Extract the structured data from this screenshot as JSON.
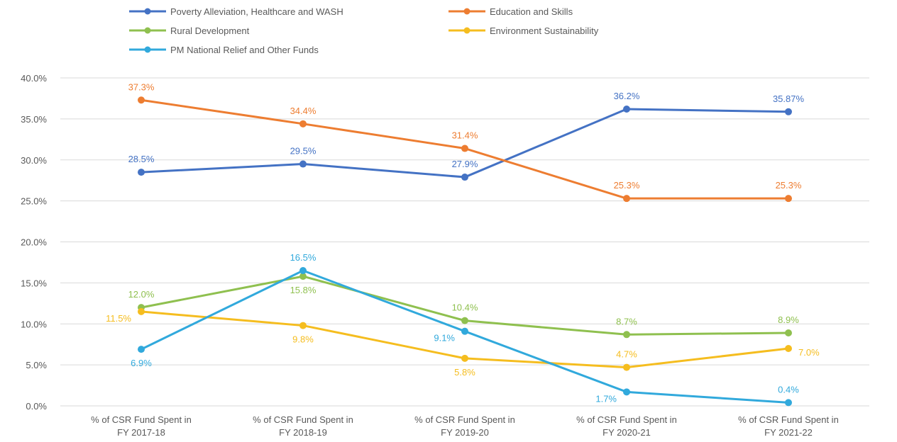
{
  "chart_data": {
    "type": "line",
    "title": "",
    "xlabel": "",
    "ylabel": "",
    "ylim": [
      0,
      40
    ],
    "yticks": [
      "0.0%",
      "5.0%",
      "10.0%",
      "15.0%",
      "20.0%",
      "25.0%",
      "30.0%",
      "35.0%",
      "40.0%"
    ],
    "grid": true,
    "legend_position": "top",
    "categories": [
      [
        "% of CSR Fund Spent in",
        "FY 2017-18"
      ],
      [
        "% of CSR Fund Spent in",
        "FY 2018-19"
      ],
      [
        "% of CSR Fund Spent in",
        "FY 2019-20"
      ],
      [
        "% of CSR Fund Spent in",
        "FY 2020-21"
      ],
      [
        "% of CSR Fund Spent in",
        "FY 2021-22"
      ]
    ],
    "series": [
      {
        "name": "Poverty Alleviation, Healthcare and WASH",
        "color": "#4472c4",
        "values": [
          28.5,
          29.5,
          27.9,
          36.2,
          35.87
        ],
        "labels": [
          "28.5%",
          "29.5%",
          "27.9%",
          "36.2%",
          "35.87%"
        ],
        "label_pos": [
          "above",
          "above",
          "above",
          "above",
          "above"
        ]
      },
      {
        "name": "Education and Skills",
        "color": "#ed7d31",
        "values": [
          37.3,
          34.4,
          31.4,
          25.3,
          25.3
        ],
        "labels": [
          "37.3%",
          "34.4%",
          "31.4%",
          "25.3%",
          "25.3%"
        ],
        "label_pos": [
          "above",
          "above",
          "above",
          "above",
          "above"
        ]
      },
      {
        "name": "Rural Development",
        "color": "#8fc04f",
        "values": [
          12.0,
          15.8,
          10.4,
          8.7,
          8.9
        ],
        "labels": [
          "12.0%",
          "15.8%",
          "10.4%",
          "8.7%",
          "8.9%"
        ],
        "label_pos": [
          "above",
          "below",
          "above",
          "above",
          "above"
        ]
      },
      {
        "name": "Environment Sustainability",
        "color": "#f5bd1f",
        "values": [
          11.5,
          9.8,
          5.8,
          4.7,
          7.0
        ],
        "labels": [
          "11.5%",
          "9.8%",
          "5.8%",
          "4.7%",
          "7.0%"
        ],
        "label_pos": [
          "left",
          "below",
          "below",
          "above",
          "right"
        ]
      },
      {
        "name": "PM National Relief and Other Funds",
        "color": "#31a9dc",
        "values": [
          6.9,
          16.5,
          9.1,
          1.7,
          0.4
        ],
        "labels": [
          "6.9%",
          "16.5%",
          "9.1%",
          "1.7%",
          "0.4%"
        ],
        "label_pos": [
          "below",
          "above",
          "left",
          "left",
          "above"
        ]
      }
    ]
  }
}
